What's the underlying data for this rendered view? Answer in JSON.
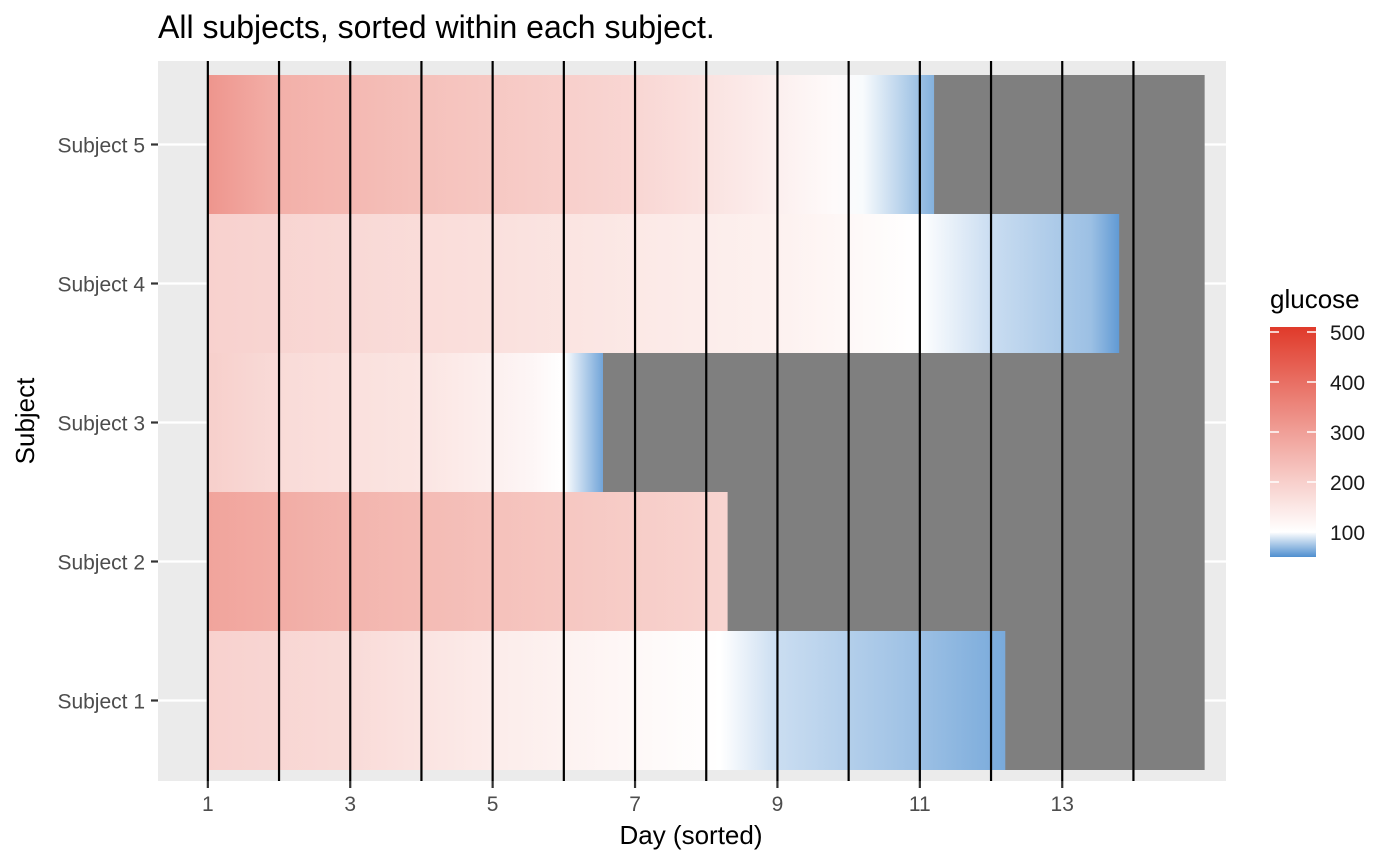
{
  "chart_data": {
    "type": "heatmap",
    "title": "All subjects, sorted within each subject.",
    "xlabel": "Day (sorted)",
    "ylabel": "Subject",
    "xlim": [
      0.3,
      15.3
    ],
    "x_ticks": [
      1,
      3,
      5,
      7,
      9,
      11,
      13
    ],
    "vlines": [
      1,
      2,
      3,
      4,
      5,
      6,
      7,
      8,
      9,
      10,
      11,
      12,
      13,
      14
    ],
    "fill_end": 15,
    "background_fill": "#7f7f7f",
    "grid": true,
    "categories": [
      "Subject 1",
      "Subject 2",
      "Subject 3",
      "Subject 4",
      "Subject 5"
    ],
    "series": [
      {
        "name": "Subject 1",
        "start": 1,
        "end": 12.2,
        "values": [
          {
            "x": 1,
            "v": 195
          },
          {
            "x": 3,
            "v": 175
          },
          {
            "x": 5,
            "v": 140
          },
          {
            "x": 7,
            "v": 115
          },
          {
            "x": 8.2,
            "v": 100
          },
          {
            "x": 9,
            "v": 85
          },
          {
            "x": 11,
            "v": 72
          },
          {
            "x": 12.2,
            "v": 62
          }
        ]
      },
      {
        "name": "Subject 2",
        "start": 1,
        "end": 8.3,
        "values": [
          {
            "x": 1,
            "v": 290
          },
          {
            "x": 3,
            "v": 255
          },
          {
            "x": 5,
            "v": 230
          },
          {
            "x": 7,
            "v": 205
          },
          {
            "x": 8.3,
            "v": 190
          }
        ]
      },
      {
        "name": "Subject 3",
        "start": 1,
        "end": 6.55,
        "values": [
          {
            "x": 1,
            "v": 200
          },
          {
            "x": 2,
            "v": 175
          },
          {
            "x": 4,
            "v": 155
          },
          {
            "x": 5.5,
            "v": 120
          },
          {
            "x": 6,
            "v": 100
          },
          {
            "x": 6.55,
            "v": 60
          }
        ]
      },
      {
        "name": "Subject 4",
        "start": 1,
        "end": 13.8,
        "values": [
          {
            "x": 1,
            "v": 195
          },
          {
            "x": 5,
            "v": 165
          },
          {
            "x": 9,
            "v": 130
          },
          {
            "x": 11,
            "v": 100
          },
          {
            "x": 12,
            "v": 85
          },
          {
            "x": 13.4,
            "v": 72
          },
          {
            "x": 13.8,
            "v": 55
          }
        ]
      },
      {
        "name": "Subject 5",
        "start": 1,
        "end": 11.2,
        "values": [
          {
            "x": 1,
            "v": 320
          },
          {
            "x": 2,
            "v": 265
          },
          {
            "x": 4,
            "v": 230
          },
          {
            "x": 7,
            "v": 185
          },
          {
            "x": 8,
            "v": 160
          },
          {
            "x": 9.8,
            "v": 110
          },
          {
            "x": 10.2,
            "v": 98
          },
          {
            "x": 11.2,
            "v": 65
          }
        ]
      }
    ],
    "legend": {
      "title": "glucose",
      "position": "right",
      "min": 50,
      "max": 510,
      "mid": 100,
      "ticks": [
        100,
        200,
        300,
        400,
        500
      ],
      "low_color": "#4f8fcf",
      "mid_color": "#ffffff",
      "high_color": "#e03a2a"
    }
  }
}
